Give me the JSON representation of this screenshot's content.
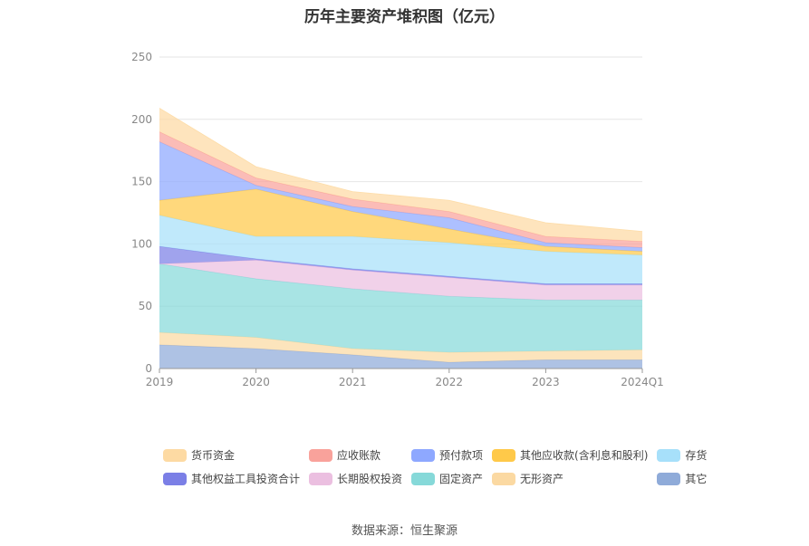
{
  "chart_data": {
    "type": "area",
    "stacked": true,
    "title": "历年主要资产堆积图（亿元）",
    "categories": [
      "2019",
      "2020",
      "2021",
      "2022",
      "2023",
      "2024Q1"
    ],
    "ylim": [
      0,
      250
    ],
    "yticks": [
      "0",
      "50",
      "100",
      "150",
      "200",
      "250"
    ],
    "grid": true,
    "legend_position": "bottom",
    "series": [
      {
        "name": "其它",
        "color": "#8fabd9",
        "values": [
          19,
          16,
          11,
          5,
          7,
          7
        ]
      },
      {
        "name": "无形资产",
        "color": "#fbd9a2",
        "values": [
          10,
          9,
          5,
          8,
          7,
          8
        ]
      },
      {
        "name": "固定资产",
        "color": "#86d9d9",
        "values": [
          55,
          47,
          48,
          45,
          41,
          40
        ]
      },
      {
        "name": "长期股权投资",
        "color": "#ebbfe0",
        "values": [
          0,
          15,
          15,
          15,
          12,
          12
        ]
      },
      {
        "name": "其他权益工具投资合计",
        "color": "#7b7fe6",
        "values": [
          14,
          1,
          1,
          1,
          1,
          1
        ]
      },
      {
        "name": "存货",
        "color": "#a7e0fa",
        "values": [
          25,
          18,
          26,
          27,
          26,
          23
        ]
      },
      {
        "name": "其他应收款(含利息和股利)",
        "color": "#ffc949",
        "values": [
          12,
          38,
          20,
          11,
          4,
          3
        ]
      },
      {
        "name": "预付款项",
        "color": "#8ea8ff",
        "values": [
          47,
          3,
          4,
          9,
          3,
          3
        ]
      },
      {
        "name": "应收账款",
        "color": "#f9a29b",
        "values": [
          8,
          6,
          6,
          5,
          5,
          5
        ]
      },
      {
        "name": "货币资金",
        "color": "#fddaa3",
        "values": [
          19,
          9,
          6,
          9,
          11,
          8
        ]
      }
    ],
    "legend_order": [
      "货币资金",
      "应收账款",
      "预付款项",
      "其他应收款(含利息和股利)",
      "存货",
      "其他权益工具投资合计",
      "长期股权投资",
      "固定资产",
      "无形资产",
      "其它"
    ]
  },
  "source": "数据来源：恒生聚源"
}
